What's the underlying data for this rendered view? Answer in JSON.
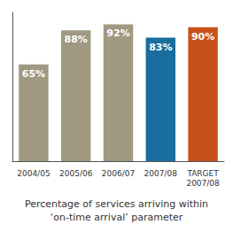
{
  "chart_data": {
    "type": "bar",
    "title": "Percentage of services arriving within\n‘on-time arrival’ parameter",
    "categories": [
      "2004/05",
      "2005/06",
      "2006/07",
      "2007/08",
      "TARGET\n2007/08"
    ],
    "values": [
      65,
      88,
      92,
      83,
      90
    ],
    "value_labels": [
      "65%",
      "88%",
      "92%",
      "83%",
      "90%"
    ],
    "data_labels": true,
    "colors": [
      "#a09880",
      "#a09880",
      "#a09880",
      "#1a6e9e",
      "#c8511a"
    ],
    "ylim": [
      0,
      100
    ],
    "grid": false,
    "tick_labels": "x"
  }
}
